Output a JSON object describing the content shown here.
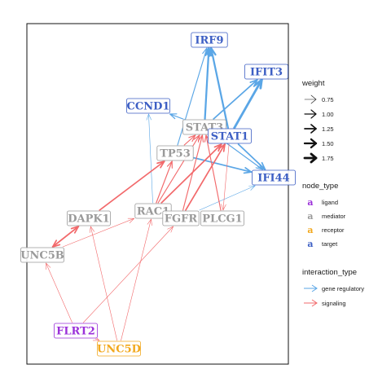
{
  "colors": {
    "ligand": "#9b30d9",
    "mediator": "#9a9a9a",
    "receptor": "#f2a81d",
    "target": "#3d5fc4",
    "gene_regulatory": "#5aa6e6",
    "signaling": "#f2696b"
  },
  "nodes": [
    {
      "id": "IRF9",
      "label": "IRF9",
      "type": "target"
    },
    {
      "id": "IFIT3",
      "label": "IFIT3",
      "type": "target"
    },
    {
      "id": "CCND1",
      "label": "CCND1",
      "type": "target"
    },
    {
      "id": "STAT3",
      "label": "STAT3",
      "type": "mediator"
    },
    {
      "id": "STAT1",
      "label": "STAT1",
      "type": "target"
    },
    {
      "id": "TP53",
      "label": "TP53",
      "type": "mediator"
    },
    {
      "id": "IFI44",
      "label": "IFI44",
      "type": "target"
    },
    {
      "id": "DAPK1",
      "label": "DAPK1",
      "type": "mediator"
    },
    {
      "id": "RAC1",
      "label": "RAC1",
      "type": "mediator"
    },
    {
      "id": "FGFR",
      "label": "FGFR",
      "type": "mediator"
    },
    {
      "id": "PLCG1",
      "label": "PLCG1",
      "type": "mediator"
    },
    {
      "id": "UNC5B",
      "label": "UNC5B",
      "type": "mediator"
    },
    {
      "id": "FLRT2",
      "label": "FLRT2",
      "type": "ligand"
    },
    {
      "id": "UNC5D",
      "label": "UNC5D",
      "type": "receptor"
    }
  ],
  "edges": [
    {
      "from": "STAT3",
      "to": "IRF9",
      "type": "gene_regulatory",
      "weight": 1.5
    },
    {
      "from": "STAT1",
      "to": "IRF9",
      "type": "gene_regulatory",
      "weight": 1.5
    },
    {
      "from": "TP53",
      "to": "IRF9",
      "type": "gene_regulatory",
      "weight": 1.0
    },
    {
      "from": "STAT1",
      "to": "IFIT3",
      "type": "gene_regulatory",
      "weight": 1.75
    },
    {
      "from": "STAT3",
      "to": "IFIT3",
      "type": "gene_regulatory",
      "weight": 1.25
    },
    {
      "from": "STAT3",
      "to": "CCND1",
      "type": "gene_regulatory",
      "weight": 1.0
    },
    {
      "from": "STAT1",
      "to": "CCND1",
      "type": "gene_regulatory",
      "weight": 0.75
    },
    {
      "from": "RAC1",
      "to": "CCND1",
      "type": "gene_regulatory",
      "weight": 0.75
    },
    {
      "from": "STAT1",
      "to": "IFI44",
      "type": "gene_regulatory",
      "weight": 1.25
    },
    {
      "from": "STAT3",
      "to": "IFI44",
      "type": "gene_regulatory",
      "weight": 1.0
    },
    {
      "from": "TP53",
      "to": "IFI44",
      "type": "gene_regulatory",
      "weight": 1.25
    },
    {
      "from": "FGFR",
      "to": "IFI44",
      "type": "gene_regulatory",
      "weight": 0.75
    },
    {
      "from": "DAPK1",
      "to": "TP53",
      "type": "signaling",
      "weight": 1.25
    },
    {
      "from": "TP53",
      "to": "STAT3",
      "type": "signaling",
      "weight": 1.0
    },
    {
      "from": "RAC1",
      "to": "STAT3",
      "type": "signaling",
      "weight": 1.0
    },
    {
      "from": "RAC1",
      "to": "STAT1",
      "type": "signaling",
      "weight": 1.25
    },
    {
      "from": "FGFR",
      "to": "STAT3",
      "type": "signaling",
      "weight": 1.0
    },
    {
      "from": "FGFR",
      "to": "STAT1",
      "type": "signaling",
      "weight": 1.25
    },
    {
      "from": "PLCG1",
      "to": "STAT3",
      "type": "signaling",
      "weight": 1.0
    },
    {
      "from": "STAT1",
      "to": "PLCG1",
      "type": "signaling",
      "weight": 0.75
    },
    {
      "from": "RAC1",
      "to": "TP53",
      "type": "signaling",
      "weight": 1.0
    },
    {
      "from": "UNC5B",
      "to": "DAPK1",
      "type": "signaling",
      "weight": 1.25
    },
    {
      "from": "DAPK1",
      "to": "UNC5B",
      "type": "signaling",
      "weight": 1.25
    },
    {
      "from": "UNC5B",
      "to": "RAC1",
      "type": "signaling",
      "weight": 0.75
    },
    {
      "from": "UNC5D",
      "to": "DAPK1",
      "type": "signaling",
      "weight": 0.75
    },
    {
      "from": "UNC5D",
      "to": "RAC1",
      "type": "signaling",
      "weight": 0.75
    },
    {
      "from": "FLRT2",
      "to": "UNC5B",
      "type": "signaling",
      "weight": 0.75
    },
    {
      "from": "FLRT2",
      "to": "FGFR",
      "type": "signaling",
      "weight": 0.75
    },
    {
      "from": "FLRT2",
      "to": "UNC5D",
      "type": "signaling",
      "weight": 0.75
    }
  ],
  "legend": {
    "weight": {
      "title": "weight",
      "entries": [
        {
          "label": "0.75",
          "value": 0.75
        },
        {
          "label": "1.00",
          "value": 1.0
        },
        {
          "label": "1.25",
          "value": 1.25
        },
        {
          "label": "1.50",
          "value": 1.5
        },
        {
          "label": "1.75",
          "value": 1.75
        }
      ]
    },
    "node_type": {
      "title": "node_type",
      "glyph": "a",
      "entries": [
        {
          "label": "ligand",
          "type": "ligand"
        },
        {
          "label": "mediator",
          "type": "mediator"
        },
        {
          "label": "receptor",
          "type": "receptor"
        },
        {
          "label": "target",
          "type": "target"
        }
      ]
    },
    "interaction_type": {
      "title": "interaction_type",
      "entries": [
        {
          "label": "gene regulatory",
          "type": "gene_regulatory"
        },
        {
          "label": "signaling",
          "type": "signaling"
        }
      ]
    }
  }
}
